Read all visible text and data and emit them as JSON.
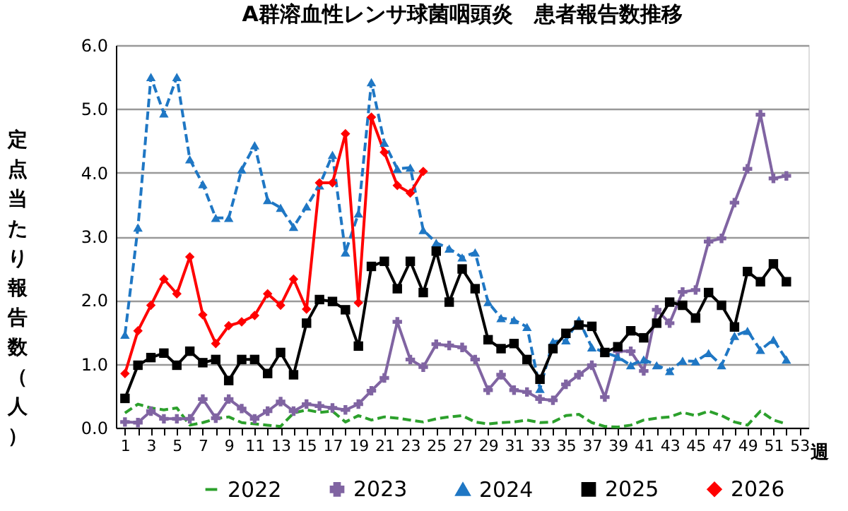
{
  "chart_data": {
    "type": "line",
    "title": "A群溶血性レンサ球菌咽頭炎　患者報告数推移",
    "ylabel": "定点当たり報告数（人）",
    "xlabel": "週",
    "x": [
      1,
      2,
      3,
      4,
      5,
      6,
      7,
      8,
      9,
      10,
      11,
      12,
      13,
      14,
      15,
      16,
      17,
      18,
      19,
      20,
      21,
      22,
      23,
      24,
      25,
      26,
      27,
      28,
      29,
      30,
      31,
      32,
      33,
      34,
      35,
      36,
      37,
      38,
      39,
      40,
      41,
      42,
      43,
      44,
      45,
      46,
      47,
      48,
      49,
      50,
      51,
      52
    ],
    "xlim": [
      0.3,
      53.7
    ],
    "xticks": [
      1,
      {
        "value": 2,
        "label": null
      },
      3,
      {
        "value": 4,
        "label": null
      },
      5,
      {
        "value": 6,
        "label": null
      },
      7,
      {
        "value": 8,
        "label": null
      },
      9,
      {
        "value": 10,
        "label": null
      },
      11,
      {
        "value": 12,
        "label": null
      },
      13,
      {
        "value": 14,
        "label": null
      },
      15,
      {
        "value": 16,
        "label": null
      },
      17,
      {
        "value": 18,
        "label": null
      },
      19,
      {
        "value": 20,
        "label": null
      },
      21,
      {
        "value": 22,
        "label": null
      },
      23,
      {
        "value": 24,
        "label": null
      },
      25,
      {
        "value": 26,
        "label": null
      },
      27,
      {
        "value": 28,
        "label": null
      },
      29,
      {
        "value": 30,
        "label": null
      },
      31,
      {
        "value": 32,
        "label": null
      },
      33,
      {
        "value": 34,
        "label": null
      },
      35,
      {
        "value": 36,
        "label": null
      },
      37,
      {
        "value": 38,
        "label": null
      },
      39,
      {
        "value": 40,
        "label": null
      },
      41,
      {
        "value": 42,
        "label": null
      },
      43,
      {
        "value": 44,
        "label": null
      },
      45,
      {
        "value": 46,
        "label": null
      },
      47,
      {
        "value": 48,
        "label": null
      },
      49,
      {
        "value": 50,
        "label": null
      },
      51,
      {
        "value": 52,
        "label": null
      },
      53
    ],
    "ylim": [
      0,
      6
    ],
    "yticks": [
      {
        "value": 0,
        "label": "0.0"
      },
      {
        "value": 1,
        "label": "1.0"
      },
      {
        "value": 2,
        "label": "2.0"
      },
      {
        "value": 3,
        "label": "3.0"
      },
      {
        "value": 4,
        "label": "4.0"
      },
      {
        "value": 5,
        "label": "5.0"
      },
      {
        "value": 6,
        "label": "6.0"
      }
    ],
    "grid": "y",
    "legend": "bottom",
    "series": [
      {
        "name": "2022",
        "color": "#2ca02c",
        "marker": "none",
        "line_style": "dashed",
        "values": [
          0.23,
          0.37,
          0.31,
          0.28,
          0.31,
          0.04,
          0.08,
          0.14,
          0.17,
          0.08,
          0.06,
          0.04,
          0.02,
          0.23,
          0.28,
          0.24,
          0.26,
          0.09,
          0.19,
          0.12,
          0.17,
          0.15,
          0.12,
          0.09,
          0.14,
          0.17,
          0.19,
          0.09,
          0.06,
          0.08,
          0.09,
          0.12,
          0.08,
          0.09,
          0.19,
          0.21,
          0.08,
          0.02,
          0.01,
          0.04,
          0.12,
          0.15,
          0.17,
          0.24,
          0.19,
          0.26,
          0.19,
          0.09,
          0.04,
          0.26,
          0.12,
          0.06
        ]
      },
      {
        "name": "2023",
        "color": "#8064a2",
        "marker": "cross",
        "line_style": "solid",
        "values": [
          0.09,
          0.08,
          0.26,
          0.14,
          0.14,
          0.14,
          0.45,
          0.15,
          0.45,
          0.3,
          0.14,
          0.26,
          0.41,
          0.26,
          0.37,
          0.34,
          0.31,
          0.28,
          0.37,
          0.58,
          0.78,
          1.66,
          1.07,
          0.95,
          1.31,
          1.29,
          1.26,
          1.07,
          0.59,
          0.83,
          0.59,
          0.56,
          0.45,
          0.43,
          0.68,
          0.83,
          0.98,
          0.48,
          1.2,
          1.2,
          0.89,
          1.85,
          1.64,
          2.13,
          2.16,
          2.92,
          2.97,
          3.53,
          4.06,
          4.91,
          3.91,
          3.95
        ]
      },
      {
        "name": "2024",
        "color": "#1f77c4",
        "marker": "triangle",
        "line_style": "dashed",
        "values": [
          1.46,
          3.14,
          5.5,
          4.93,
          5.5,
          4.21,
          3.82,
          3.29,
          3.29,
          4.05,
          4.43,
          3.57,
          3.45,
          3.15,
          3.47,
          3.8,
          4.28,
          2.75,
          3.36,
          5.42,
          4.47,
          4.06,
          4.08,
          3.1,
          2.9,
          2.81,
          2.67,
          2.75,
          1.97,
          1.72,
          1.69,
          1.58,
          0.61,
          1.35,
          1.37,
          1.69,
          1.26,
          1.18,
          1.11,
          0.98,
          1.07,
          0.98,
          0.89,
          1.05,
          1.04,
          1.17,
          0.98,
          1.44,
          1.52,
          1.22,
          1.38,
          1.07
        ]
      },
      {
        "name": "2025",
        "color": "#000000",
        "marker": "square",
        "line_style": "solid",
        "values": [
          0.46,
          0.98,
          1.1,
          1.17,
          0.98,
          1.2,
          1.02,
          1.07,
          0.74,
          1.07,
          1.07,
          0.85,
          1.18,
          0.83,
          1.64,
          2.01,
          1.98,
          1.85,
          1.28,
          2.53,
          2.61,
          2.18,
          2.61,
          2.12,
          2.77,
          1.97,
          2.49,
          2.18,
          1.38,
          1.24,
          1.32,
          1.07,
          0.76,
          1.24,
          1.48,
          1.61,
          1.59,
          1.18,
          1.27,
          1.52,
          1.41,
          1.64,
          1.97,
          1.92,
          1.72,
          2.12,
          1.92,
          1.58,
          2.45,
          2.29,
          2.57,
          2.29
        ]
      },
      {
        "name": "2026",
        "color": "#ff0000",
        "marker": "diamond",
        "line_style": "solid",
        "values": [
          0.85,
          1.52,
          1.92,
          2.33,
          2.1,
          2.68,
          1.77,
          1.32,
          1.6,
          1.66,
          1.76,
          2.1,
          1.92,
          2.33,
          1.86,
          3.84,
          3.84,
          4.61,
          1.96,
          4.87,
          4.32,
          3.8,
          3.68,
          4.02,
          null,
          null,
          null,
          null,
          null,
          null,
          null,
          null,
          null,
          null,
          null,
          null,
          null,
          null,
          null,
          null,
          null,
          null,
          null,
          null,
          null,
          null,
          null,
          null,
          null,
          null,
          null,
          null
        ]
      }
    ]
  }
}
